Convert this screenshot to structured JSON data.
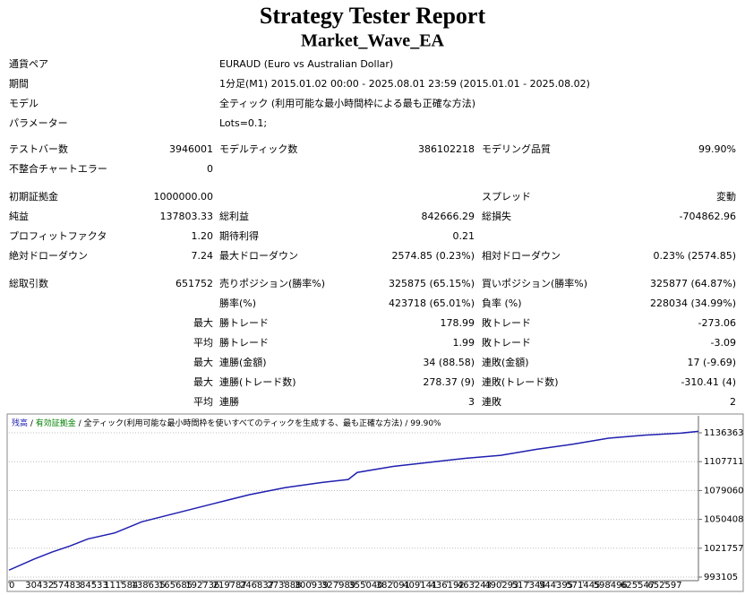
{
  "header": {
    "title": "Strategy Tester Report",
    "subtitle": "Market_Wave_EA"
  },
  "info": [
    {
      "label": "通貨ペア",
      "value": "EURAUD (Euro vs Australian Dollar)"
    },
    {
      "label": "期間",
      "value": "1分足(M1) 2015.01.02 00:00 - 2025.08.01 23:59 (2015.01.01 - 2025.08.02)"
    },
    {
      "label": "モデル",
      "value": "全ティック (利用可能な最小時間枠による最も正確な方法)"
    },
    {
      "label": "パラメーター",
      "value": "Lots=0.1;"
    }
  ],
  "sections": [
    [
      [
        "テストバー数",
        "3946001",
        "モデルティック数",
        "386102218",
        "モデリング品質",
        "99.90%"
      ],
      [
        "不整合チャートエラー",
        "0",
        null,
        null,
        null,
        null
      ]
    ],
    [
      [
        "初期証拠金",
        "1000000.00",
        null,
        null,
        "スプレッド",
        "変動"
      ],
      [
        "純益",
        "137803.33",
        "総利益",
        "842666.29",
        "総損失",
        "-704862.96"
      ],
      [
        "プロフィットファクタ",
        "1.20",
        "期待利得",
        "0.21",
        null,
        null
      ],
      [
        "絶対ドローダウン",
        "7.24",
        "最大ドローダウン",
        "2574.85 (0.23%)",
        "相対ドローダウン",
        "0.23% (2574.85)"
      ]
    ],
    [
      [
        "総取引数",
        "651752",
        "売りポジション(勝率%)",
        "325875 (65.15%)",
        "買いポジション(勝率%)",
        "325877 (64.87%)"
      ],
      [
        null,
        null,
        "勝率(%)",
        "423718 (65.01%)",
        "負率 (%)",
        "228034 (34.99%)"
      ],
      [
        null,
        "最大",
        "勝トレード",
        "178.99",
        "敗トレード",
        "-273.06"
      ],
      [
        null,
        "平均",
        "勝トレード",
        "1.99",
        "敗トレード",
        "-3.09"
      ],
      [
        null,
        "最大",
        "連勝(金額)",
        "34 (88.58)",
        "連敗(金額)",
        "17 (-9.69)"
      ],
      [
        null,
        "最大",
        "連勝(トレード数)",
        "278.37 (9)",
        "連敗(トレード数)",
        "-310.41 (4)"
      ],
      [
        null,
        "平均",
        "連勝",
        "3",
        "連敗",
        "2"
      ]
    ]
  ],
  "chart_data": {
    "type": "line",
    "legend_parts": [
      {
        "text": "残高",
        "color": "#1f1fb0"
      },
      {
        "text": " / ",
        "color": "#000000"
      },
      {
        "text": "有効証拠金",
        "color": "#008000"
      },
      {
        "text": " / ",
        "color": "#000000"
      },
      {
        "text": "全ティック(利用可能な最小時間枠を使いすべてのティックを生成する、最も正確な方法)",
        "color": "#000000"
      },
      {
        "text": " / ",
        "color": "#000000"
      },
      {
        "text": "99.90%",
        "color": "#000000"
      }
    ],
    "x": [
      0,
      25000,
      42900,
      60700,
      78600,
      105400,
      132200,
      167900,
      203600,
      239400,
      275100,
      310800,
      337600,
      346500,
      382300,
      418000,
      453700,
      489400,
      525100,
      560800,
      596600,
      632300,
      668000,
      686000
    ],
    "series": [
      {
        "name": "残高",
        "color": "#1f1fb0",
        "values": [
          1000000,
          1011000,
          1018000,
          1024000,
          1031000,
          1037000,
          1048000,
          1057000,
          1066000,
          1075000,
          1082000,
          1087000,
          1090000,
          1097000,
          1103000,
          1107000,
          1111000,
          1114000,
          1120000,
          1125000,
          1131000,
          1134000,
          1136000,
          1137803
        ]
      }
    ],
    "xlim": [
      0,
      686000
    ],
    "xticks": [
      0,
      30432,
      57483,
      84533,
      111584,
      138635,
      165685,
      192736,
      219787,
      246837,
      273888,
      300939,
      327989,
      355040,
      382091,
      409141,
      436192,
      463243,
      490293,
      517344,
      544395,
      571445,
      598496,
      625547,
      652597
    ],
    "ylim": [
      989545,
      1151490
    ],
    "yticks": [
      993105,
      1021757,
      1050408,
      1079060,
      1107711,
      1136363
    ],
    "grid": true
  }
}
